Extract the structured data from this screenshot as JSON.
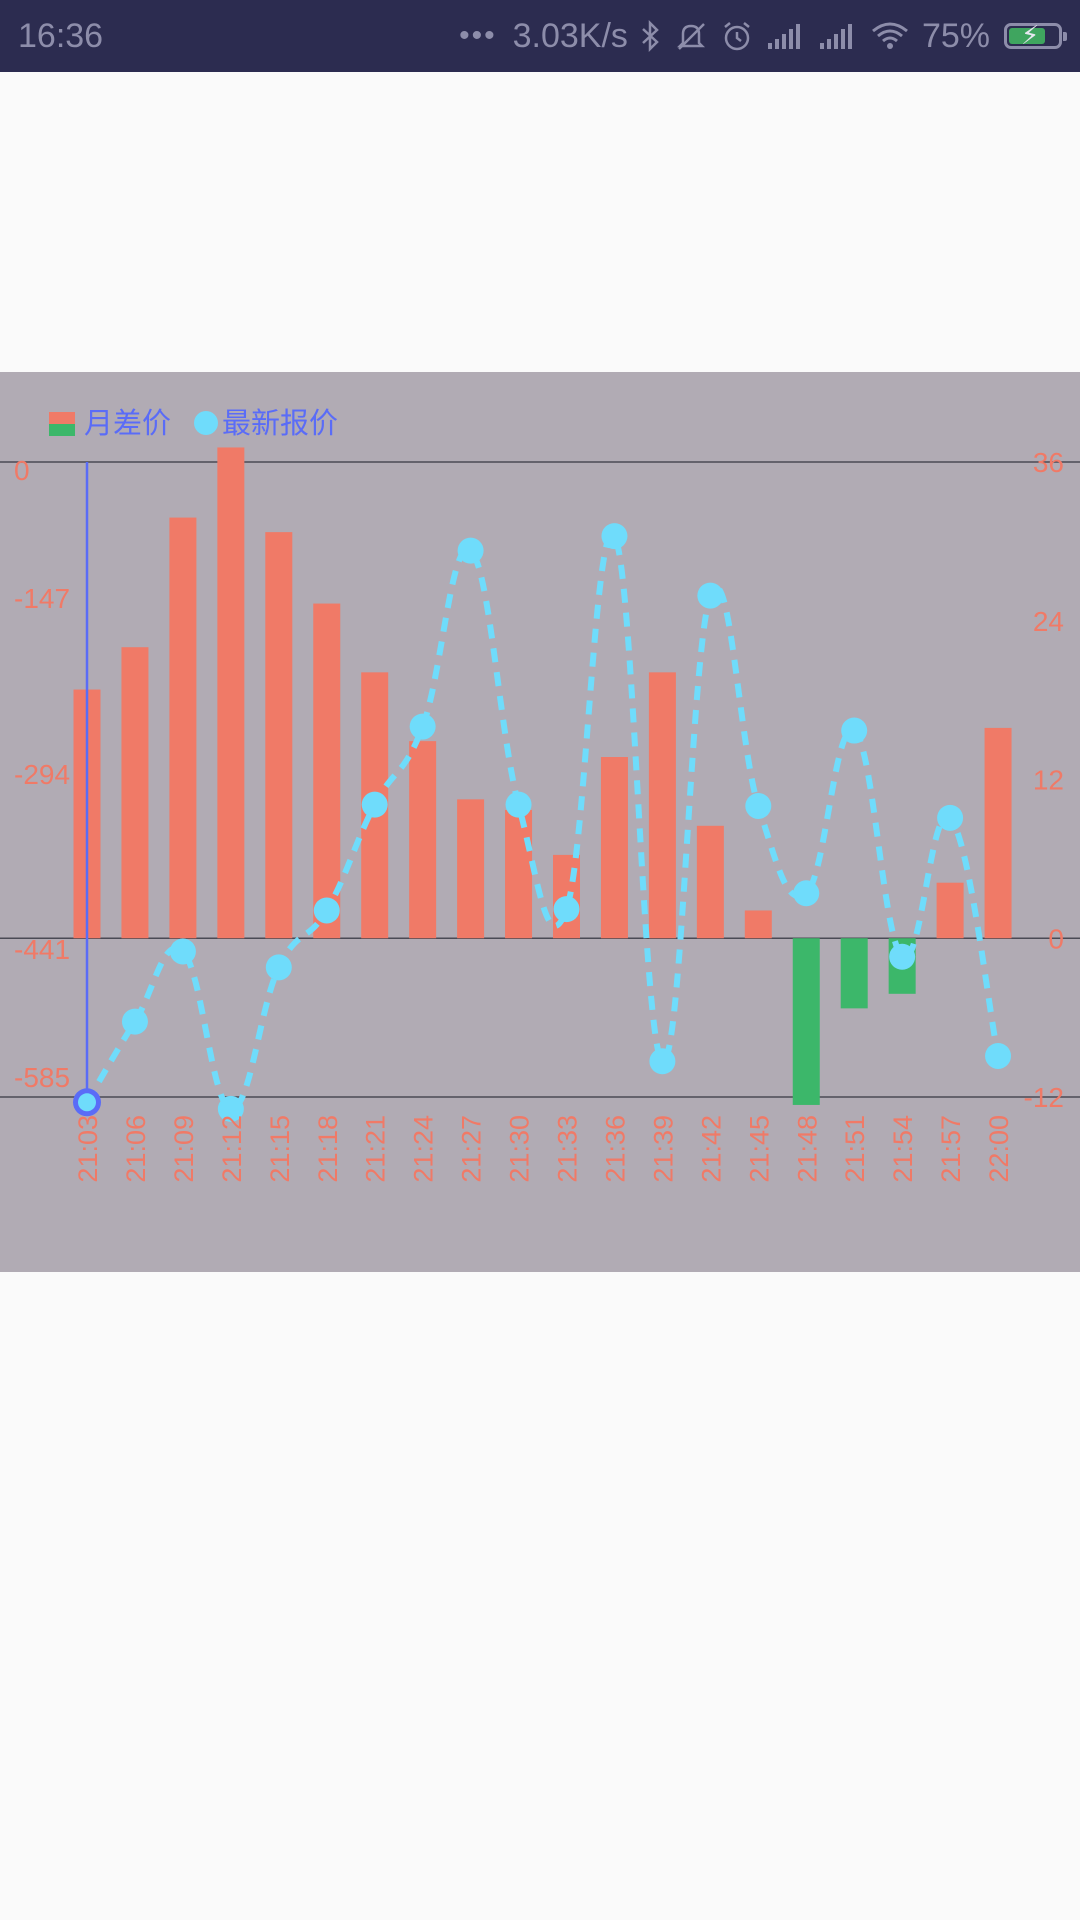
{
  "status_bar": {
    "time": "16:36",
    "dots": "•••",
    "network_speed": "3.03K/s",
    "battery_percent": "75%",
    "icons": [
      "bluetooth-icon",
      "mute-icon",
      "alarm-icon",
      "signal-icon",
      "signal-icon",
      "wifi-icon",
      "battery-charging-icon"
    ]
  },
  "chart_data": {
    "type": "bar+line",
    "legend": [
      {
        "name": "月差价",
        "type": "bar",
        "colors": [
          "#f07a67",
          "#3cb76a"
        ]
      },
      {
        "name": "最新报价",
        "type": "line",
        "color": "#6fdcfb"
      }
    ],
    "legend_position": "top-left",
    "categories": [
      "21:03",
      "21:06",
      "21:09",
      "21:12",
      "21:15",
      "21:18",
      "21:21",
      "21:24",
      "21:27",
      "21:30",
      "21:33",
      "21:36",
      "21:39",
      "21:42",
      "21:45",
      "21:48",
      "21:51",
      "21:54",
      "21:57",
      "22:00"
    ],
    "left_axis": {
      "ticks": [
        "0",
        "-147",
        "-294",
        "-441",
        "-585"
      ],
      "range": [
        -585,
        0
      ]
    },
    "right_axis": {
      "ticks": [
        "36",
        "24",
        "12",
        "0",
        "-12"
      ],
      "range": [
        -12,
        36
      ]
    },
    "series": [
      {
        "name": "月差价",
        "type": "bar",
        "axis": "right",
        "values": [
          18.8,
          22.0,
          31.8,
          37.1,
          30.7,
          25.3,
          20.1,
          14.9,
          10.5,
          9.7,
          6.3,
          13.7,
          20.1,
          8.5,
          2.1,
          -12.6,
          -5.3,
          -4.2,
          4.2,
          15.9
        ]
      },
      {
        "name": "最新报价",
        "type": "line",
        "axis": "right",
        "style": "dashed",
        "values": [
          -12.4,
          -6.3,
          -1.0,
          -12.9,
          -2.2,
          2.1,
          10.1,
          16.0,
          29.3,
          10.1,
          2.2,
          30.4,
          -9.3,
          25.9,
          10.0,
          3.4,
          15.7,
          -1.4,
          9.1,
          -8.9
        ]
      }
    ],
    "colors": {
      "bar_positive": "#f07a67",
      "bar_negative": "#3cb76a",
      "line": "#6fdcfb",
      "highlight": "#5a6cf7",
      "tick_text": "#f07a67",
      "legend_text": "#5a6cf7"
    },
    "grid": false,
    "highlighted_category": "21:03"
  }
}
